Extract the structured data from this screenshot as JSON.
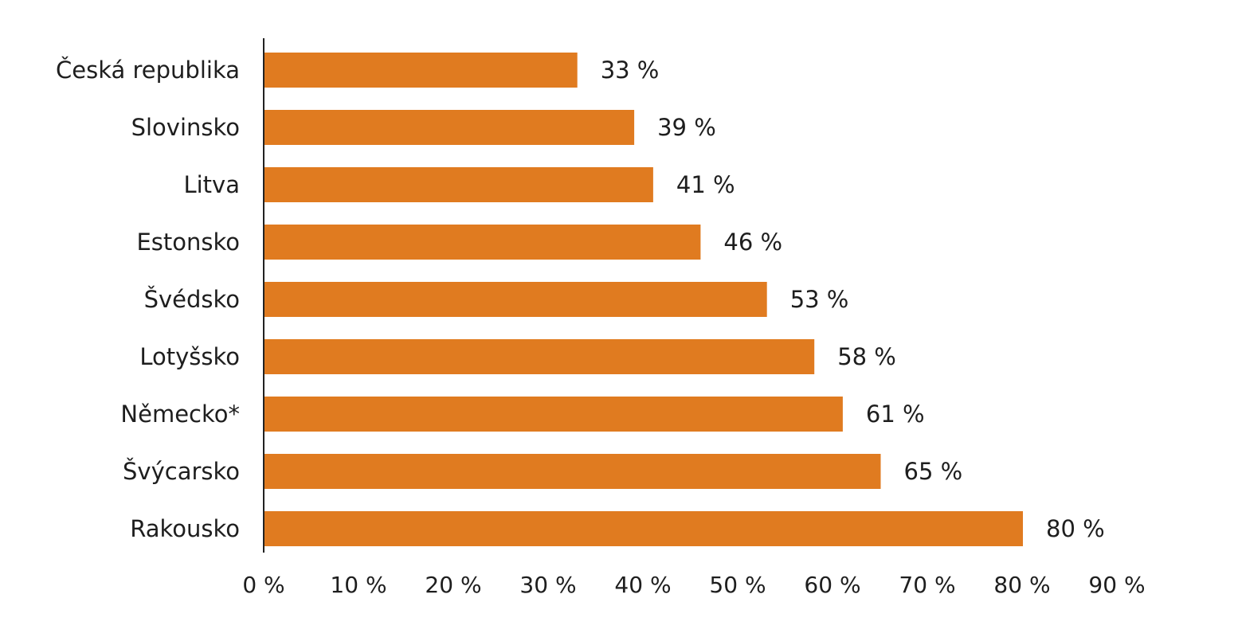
{
  "chart_data": {
    "type": "bar",
    "orientation": "horizontal",
    "categories": [
      "Česká republika",
      "Slovinsko",
      "Litva",
      "Estonsko",
      "Švédsko",
      "Lotyšsko",
      "Německo*",
      "Švýcarsko",
      "Rakousko"
    ],
    "values": [
      33,
      39,
      41,
      46,
      53,
      58,
      61,
      65,
      80
    ],
    "value_labels": [
      "33 %",
      "39 %",
      "41 %",
      "46 %",
      "53 %",
      "58 %",
      "61 %",
      "65 %",
      "80 %"
    ],
    "xlim": [
      0,
      90
    ],
    "x_ticks": [
      0,
      10,
      20,
      30,
      40,
      50,
      60,
      70,
      80,
      90
    ],
    "x_tick_labels": [
      "0 %",
      "10 %",
      "20 %",
      "30 %",
      "40 %",
      "50 %",
      "60 %",
      "70 %",
      "80 %",
      "90 %"
    ],
    "bar_color": "#e07b20",
    "grid": false,
    "legend": "none"
  }
}
